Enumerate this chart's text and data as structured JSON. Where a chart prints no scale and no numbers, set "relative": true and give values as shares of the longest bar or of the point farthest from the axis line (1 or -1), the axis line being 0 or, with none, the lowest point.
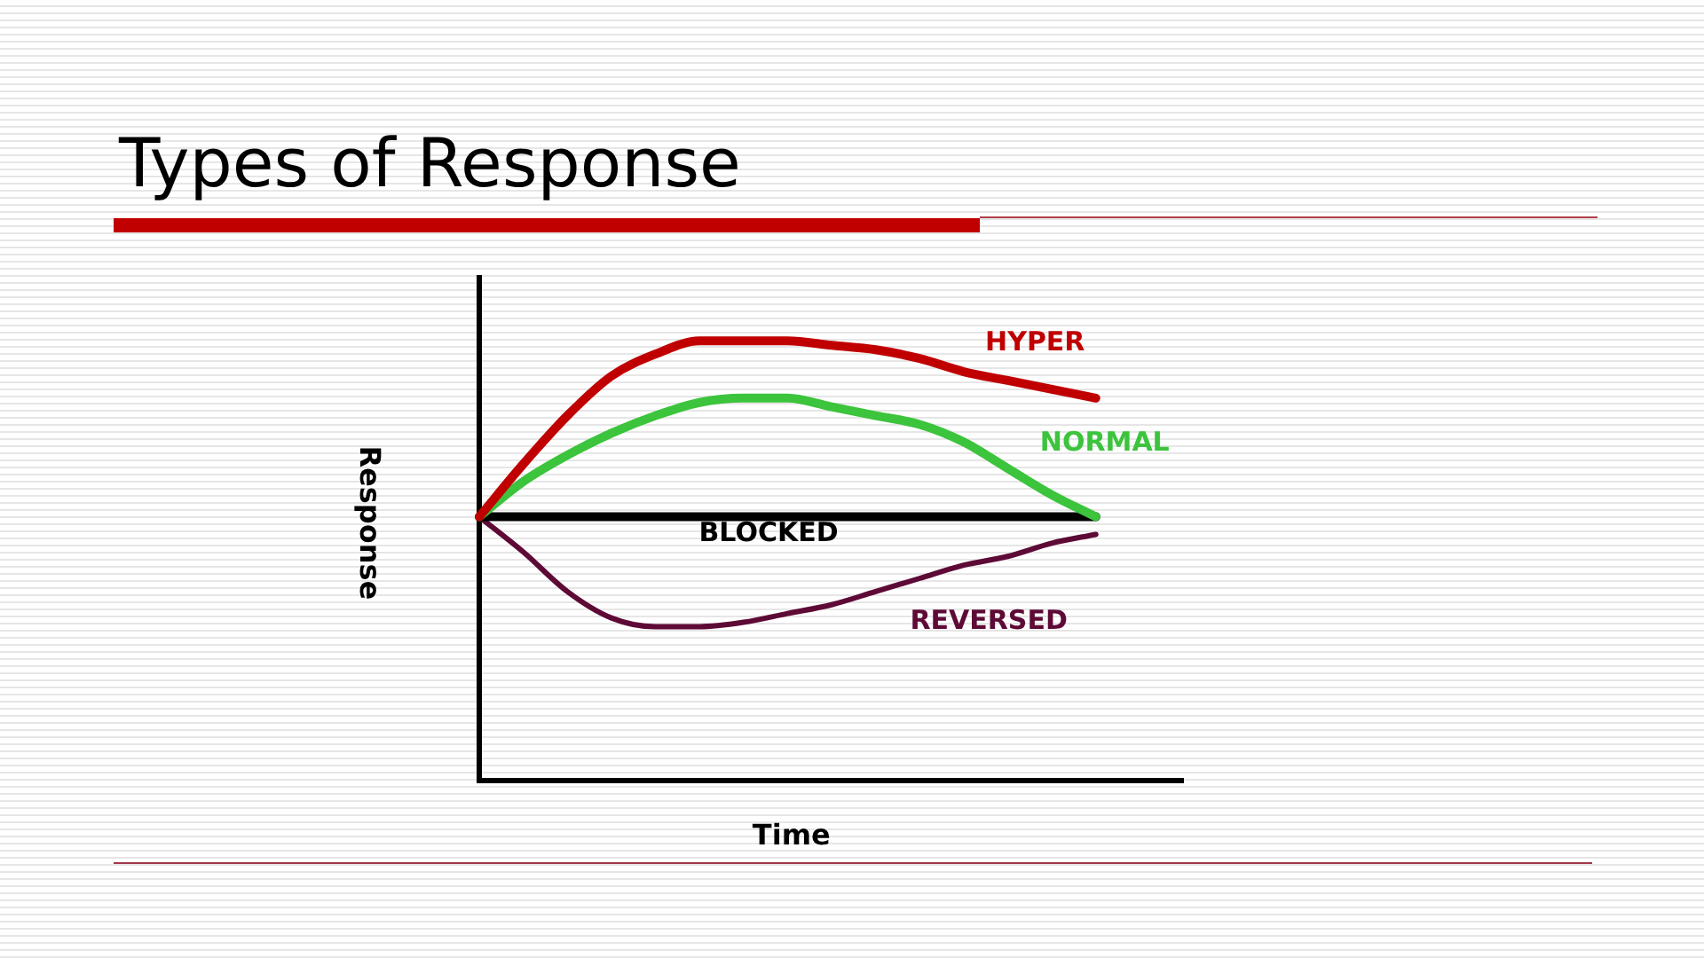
{
  "chart_data": {
    "type": "line",
    "title": "Types of Response",
    "xlabel": "Time",
    "ylabel": "Response",
    "relative": true,
    "marker": "none",
    "categories": [
      null,
      null,
      null,
      null,
      null,
      null,
      null,
      null,
      null,
      null,
      null,
      null,
      null,
      null,
      null,
      null,
      null
    ],
    "series": [
      {
        "name": "HYPER",
        "color": "#c00000",
        "values": [
          0.6,
          0.72,
          0.83,
          0.92,
          0.97,
          1.0,
          1.0,
          1.0,
          0.99,
          0.98,
          0.96,
          0.93,
          0.91,
          0.89,
          0.87,
          null,
          null
        ]
      },
      {
        "name": "NORMAL",
        "color": "#3cc43c",
        "values": [
          0.6,
          0.68,
          0.74,
          0.79,
          0.83,
          0.86,
          0.87,
          0.87,
          0.85,
          0.83,
          0.81,
          0.77,
          0.71,
          0.65,
          0.6,
          null,
          null
        ]
      },
      {
        "name": "BLOCKED",
        "color": "#000000",
        "values": [
          0.6,
          0.6,
          0.6,
          0.6,
          0.6,
          0.6,
          0.6,
          0.6,
          0.6,
          0.6,
          0.6,
          0.6,
          0.6,
          0.6,
          0.6,
          null,
          null
        ]
      },
      {
        "name": "REVERSED",
        "color": "#5e0a36",
        "values": [
          0.6,
          0.52,
          0.43,
          0.37,
          0.35,
          0.35,
          0.36,
          0.38,
          0.4,
          0.43,
          0.46,
          0.49,
          0.51,
          0.54,
          0.56,
          null,
          null
        ]
      }
    ]
  }
}
